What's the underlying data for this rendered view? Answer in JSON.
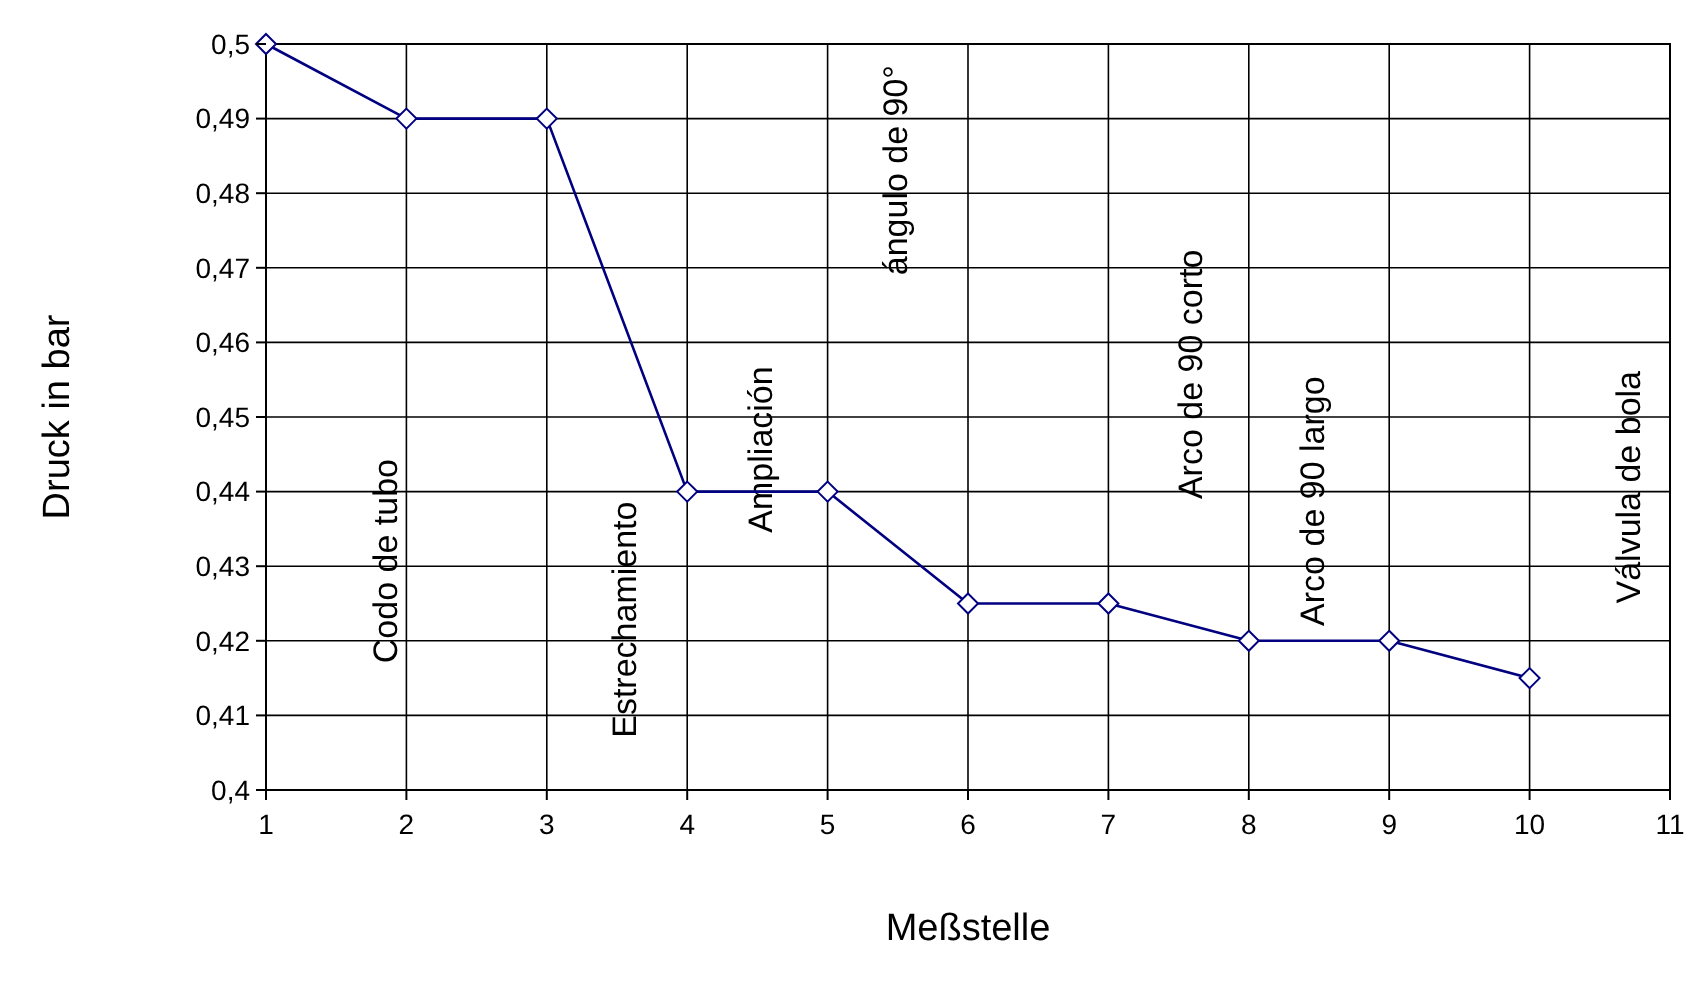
{
  "chart_data": {
    "type": "line",
    "xlabel": "Meßstelle",
    "ylabel": "Druck in bar",
    "x": [
      1,
      2,
      3,
      4,
      5,
      6,
      7,
      8,
      9,
      10
    ],
    "series": [
      {
        "color": "#000080",
        "values": [
          0.5,
          0.49,
          0.49,
          0.44,
          0.44,
          0.425,
          0.425,
          0.42,
          0.42,
          0.415
        ]
      }
    ],
    "xlim": [
      1,
      11
    ],
    "xticks": [
      1,
      2,
      3,
      4,
      5,
      6,
      7,
      8,
      9,
      10,
      11
    ],
    "ylim": [
      0.4,
      0.5
    ],
    "yticks": [
      {
        "value": 0.4,
        "label": "0,4"
      },
      {
        "value": 0.41,
        "label": "0,41"
      },
      {
        "value": 0.42,
        "label": "0,42"
      },
      {
        "value": 0.43,
        "label": "0,43"
      },
      {
        "value": 0.44,
        "label": "0,44"
      },
      {
        "value": 0.45,
        "label": "0,45"
      },
      {
        "value": 0.46,
        "label": "0,46"
      },
      {
        "value": 0.47,
        "label": "0,47"
      },
      {
        "value": 0.48,
        "label": "0,48"
      },
      {
        "value": 0.49,
        "label": "0,49"
      },
      {
        "value": 0.5,
        "label": "0,5"
      }
    ],
    "grid": true,
    "marker": "diamond",
    "line_style": "solid",
    "annotations": [
      "Codo de tubo",
      "Estrechamiento",
      "Ampliación",
      "ángulo de 90°",
      "Arco de 90 corto",
      "Arco de 90 largo",
      "Válvula de bola"
    ]
  }
}
